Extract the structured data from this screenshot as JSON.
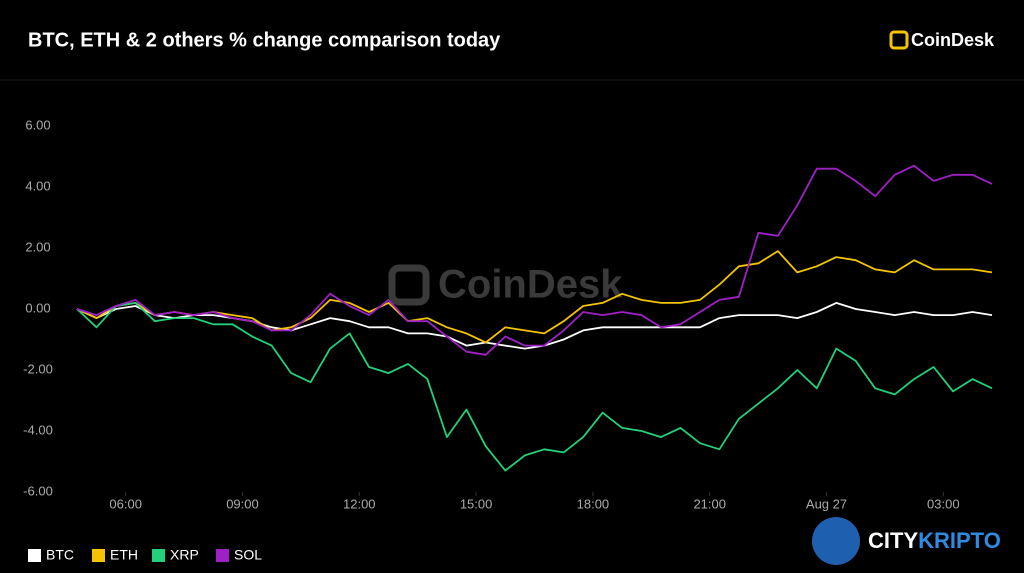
{
  "chart_data": {
    "type": "line",
    "title": "BTC, ETH & 2 others % change comparison today",
    "brand": "CoinDesk",
    "watermark": "CoinDesk",
    "overlay_brand": {
      "part1": "CITY",
      "part2": "KRIPTO"
    },
    "x": [
      "04:45",
      "05:15",
      "05:45",
      "06:15",
      "06:45",
      "07:15",
      "07:45",
      "08:15",
      "08:45",
      "09:15",
      "09:45",
      "10:15",
      "10:45",
      "11:15",
      "11:45",
      "12:15",
      "12:45",
      "13:15",
      "13:45",
      "14:15",
      "14:45",
      "15:15",
      "15:45",
      "16:15",
      "16:45",
      "17:15",
      "17:45",
      "18:15",
      "18:45",
      "19:15",
      "19:45",
      "20:15",
      "20:45",
      "21:15",
      "21:45",
      "22:15",
      "22:45",
      "23:15",
      "23:45",
      "00:15",
      "00:45",
      "01:15",
      "01:45",
      "02:15",
      "02:45",
      "03:15",
      "03:45",
      "04:15"
    ],
    "xticks": [
      "06:00",
      "09:00",
      "12:00",
      "15:00",
      "18:00",
      "21:00",
      {
        "value": "00:00",
        "label": "Aug 27"
      },
      "03:00"
    ],
    "ylim": [
      -6,
      6
    ],
    "yticks": [
      {
        "value": 6,
        "label": "6.00"
      },
      {
        "value": 4,
        "label": "4.00"
      },
      {
        "value": 2,
        "label": "2.00"
      },
      {
        "value": 0,
        "label": "0.00"
      },
      {
        "value": -2,
        "label": "-2.00"
      },
      {
        "value": -4,
        "label": "-4.00"
      },
      {
        "value": -6,
        "label": "-6.00"
      }
    ],
    "series": [
      {
        "name": "BTC",
        "color": "#ffffff",
        "values": [
          0,
          -0.3,
          0,
          0.1,
          -0.2,
          -0.3,
          -0.2,
          -0.2,
          -0.3,
          -0.4,
          -0.6,
          -0.7,
          -0.5,
          -0.3,
          -0.4,
          -0.6,
          -0.6,
          -0.8,
          -0.8,
          -0.9,
          -1.2,
          -1.1,
          -1.2,
          -1.3,
          -1.2,
          -1.0,
          -0.7,
          -0.6,
          -0.6,
          -0.6,
          -0.6,
          -0.6,
          -0.6,
          -0.3,
          -0.2,
          -0.2,
          -0.2,
          -0.3,
          -0.1,
          0.2,
          0,
          -0.1,
          -0.2,
          -0.1,
          -0.2,
          -0.2,
          -0.1,
          -0.2
        ]
      },
      {
        "name": "ETH",
        "color": "#f5c400",
        "values": [
          0,
          -0.3,
          0.1,
          0.2,
          -0.2,
          -0.1,
          -0.2,
          -0.1,
          -0.2,
          -0.3,
          -0.7,
          -0.6,
          -0.3,
          0.3,
          0.2,
          -0.1,
          0.2,
          -0.4,
          -0.3,
          -0.6,
          -0.8,
          -1.1,
          -0.6,
          -0.7,
          -0.8,
          -0.4,
          0.1,
          0.2,
          0.5,
          0.3,
          0.2,
          0.2,
          0.3,
          0.8,
          1.4,
          1.5,
          1.9,
          1.2,
          1.4,
          1.7,
          1.6,
          1.3,
          1.2,
          1.6,
          1.3,
          1.3,
          1.3,
          1.2
        ]
      },
      {
        "name": "XRP",
        "color": "#22d17a",
        "values": [
          0,
          -0.6,
          0.1,
          0.2,
          -0.4,
          -0.3,
          -0.3,
          -0.5,
          -0.5,
          -0.9,
          -1.2,
          -2.1,
          -2.4,
          -1.3,
          -0.8,
          -1.9,
          -2.1,
          -1.8,
          -2.3,
          -4.2,
          -3.3,
          -4.5,
          -5.3,
          -4.8,
          -4.6,
          -4.7,
          -4.2,
          -3.4,
          -3.9,
          -4.0,
          -4.2,
          -3.9,
          -4.4,
          -4.6,
          -3.6,
          -3.1,
          -2.6,
          -2.0,
          -2.6,
          -1.3,
          -1.7,
          -2.6,
          -2.8,
          -2.3,
          -1.9,
          -2.7,
          -2.3,
          -2.6
        ]
      },
      {
        "name": "SOL",
        "color": "#a020c8",
        "values": [
          0,
          -0.2,
          0.1,
          0.3,
          -0.2,
          -0.1,
          -0.2,
          -0.1,
          -0.3,
          -0.4,
          -0.7,
          -0.7,
          -0.2,
          0.5,
          0.1,
          -0.2,
          0.3,
          -0.4,
          -0.4,
          -0.9,
          -1.4,
          -1.5,
          -0.9,
          -1.2,
          -1.2,
          -0.7,
          -0.1,
          -0.2,
          -0.1,
          -0.2,
          -0.6,
          -0.5,
          -0.1,
          0.3,
          0.4,
          2.5,
          2.4,
          3.4,
          4.6,
          4.6,
          4.2,
          3.7,
          4.4,
          4.7,
          4.2,
          4.4,
          4.4,
          4.1
        ]
      }
    ]
  }
}
